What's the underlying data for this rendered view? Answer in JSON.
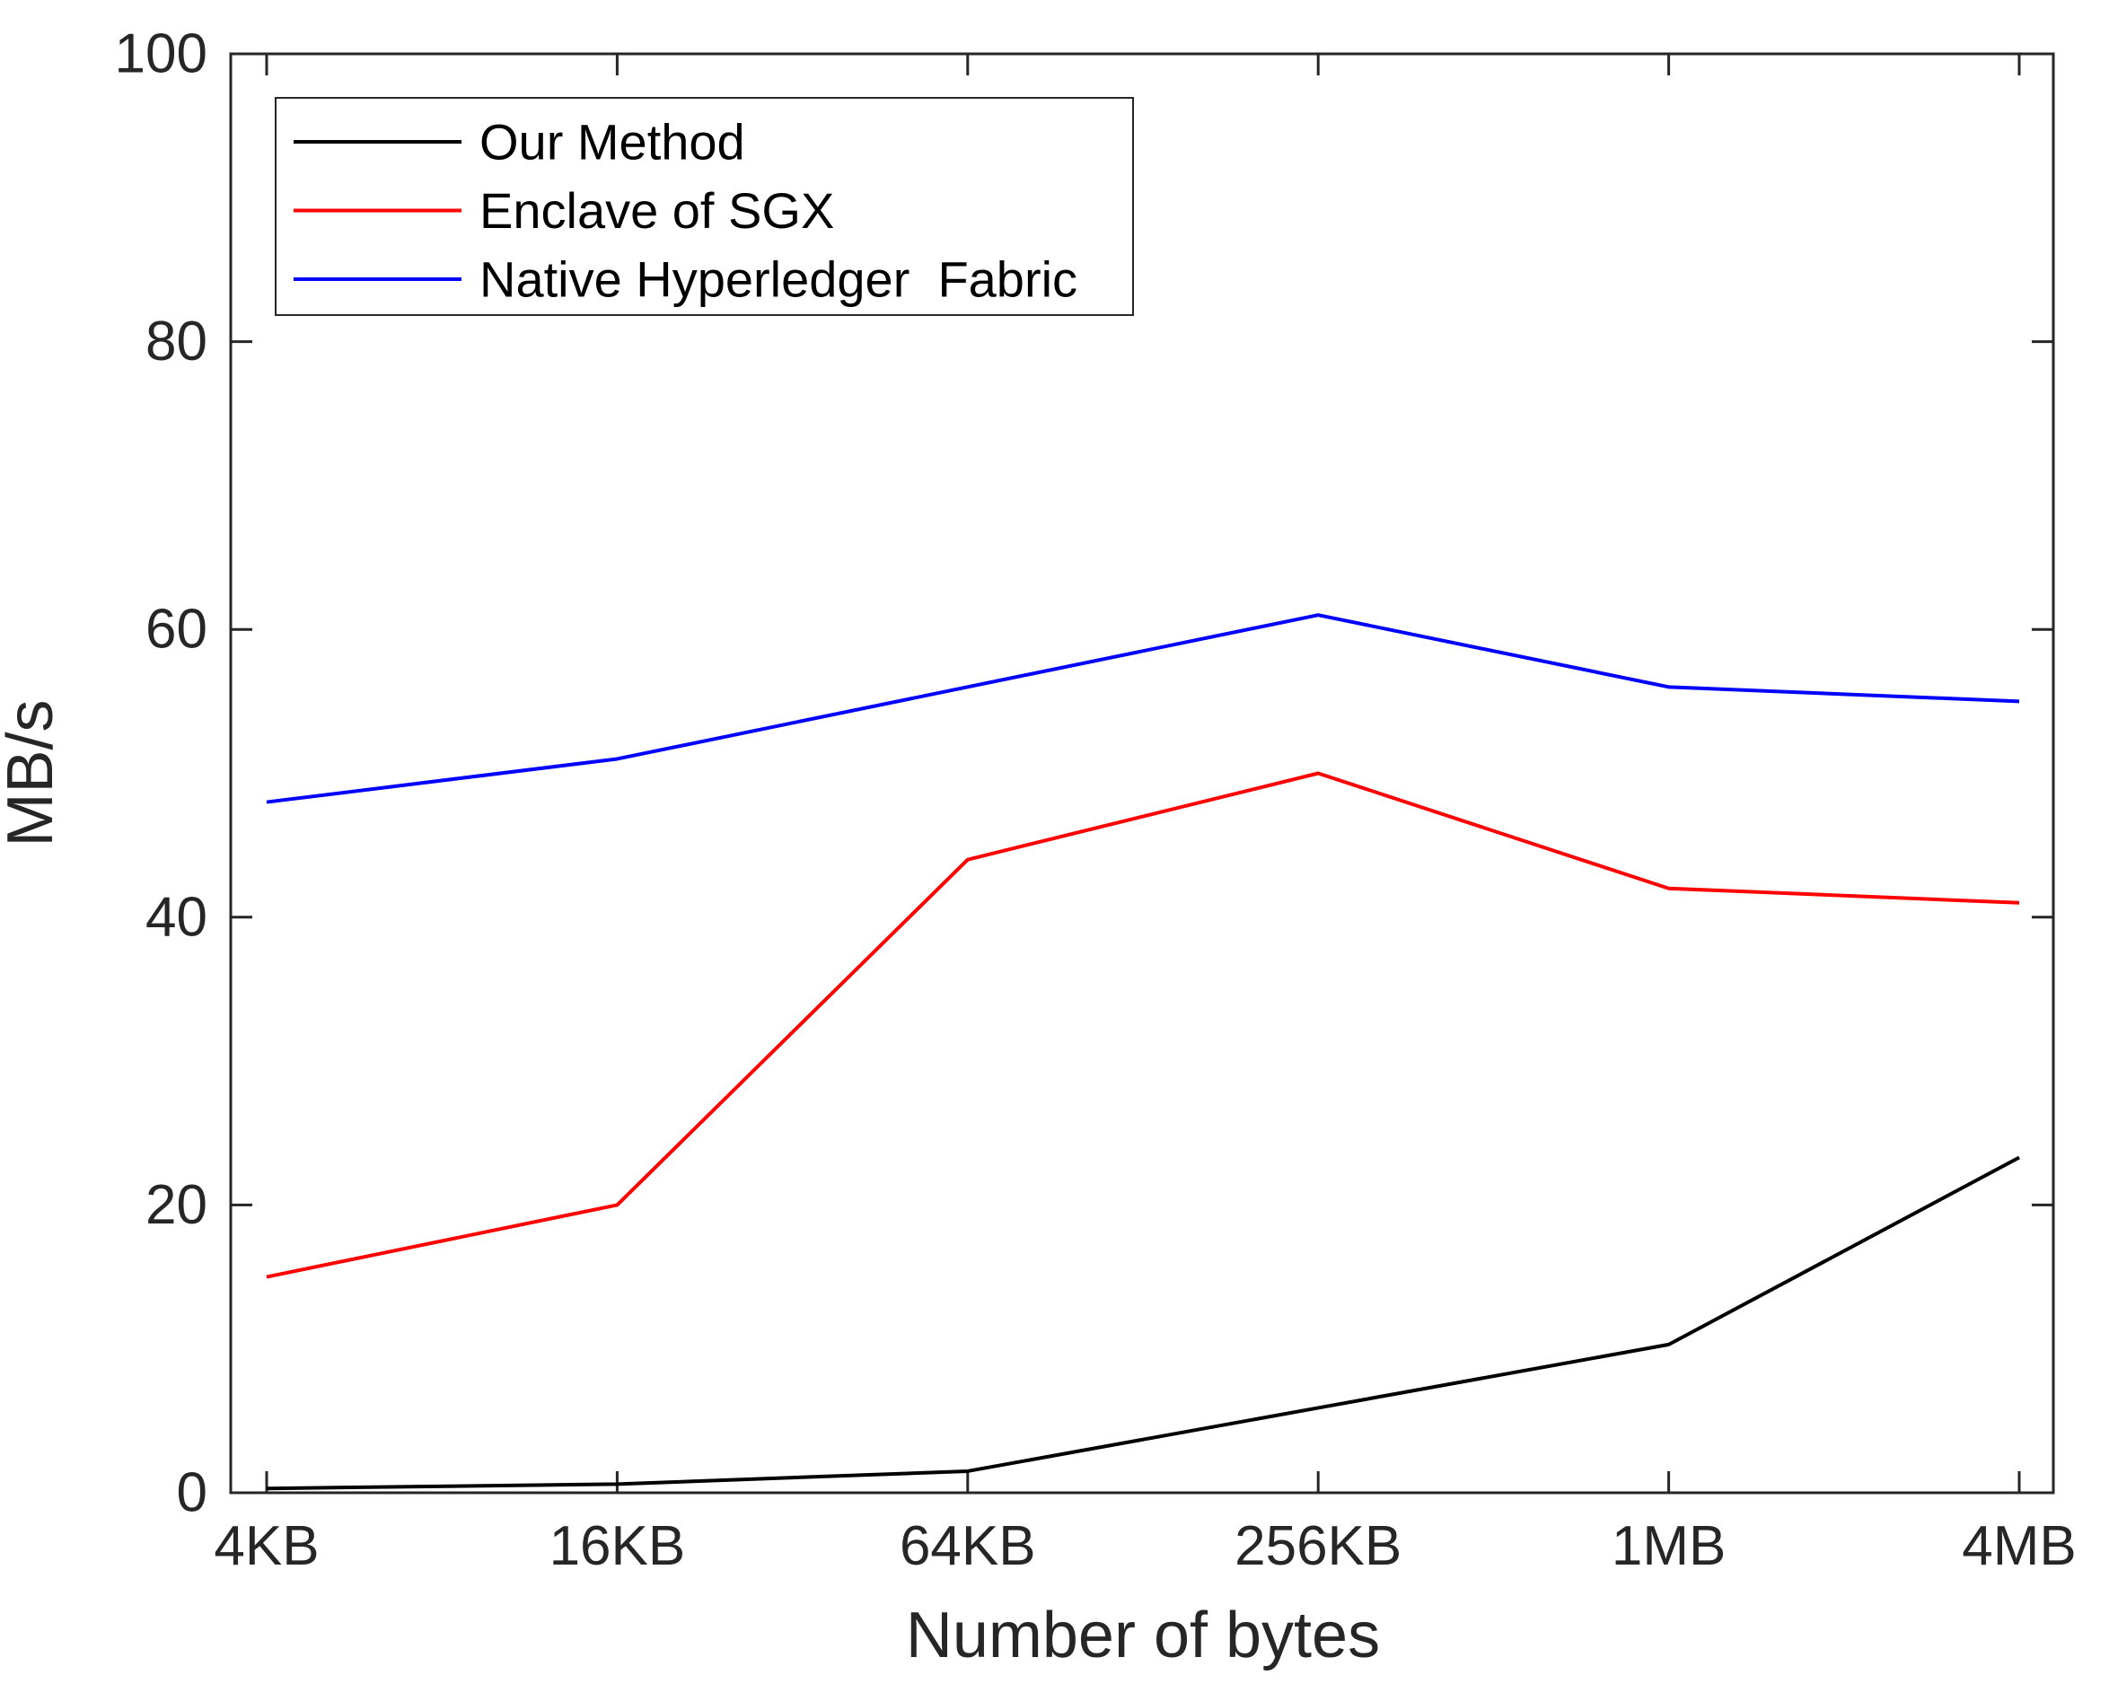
{
  "chart_data": {
    "type": "line",
    "categories": [
      "4KB",
      "16KB",
      "64KB",
      "256KB",
      "1MB",
      "4MB"
    ],
    "series": [
      {
        "name": "Our Method",
        "color": "#000000",
        "values": [
          0.3,
          0.6,
          1.5,
          5.9,
          10.3,
          23.3
        ]
      },
      {
        "name": "Enclave of SGX",
        "color": "#ff0000",
        "values": [
          15,
          20,
          44,
          50,
          42,
          41
        ]
      },
      {
        "name": "Native Hyperledger  Fabric",
        "color": "#0000ff",
        "values": [
          48,
          51,
          56,
          61,
          56,
          55
        ]
      }
    ],
    "title": "",
    "xlabel": "Number of bytes",
    "ylabel": "MB/s",
    "ylim": [
      0,
      100
    ],
    "yticks": [
      0,
      20,
      40,
      60,
      80,
      100
    ],
    "grid": false,
    "legend_position": "top-left",
    "axis_color": "#262626",
    "background": "#ffffff"
  }
}
